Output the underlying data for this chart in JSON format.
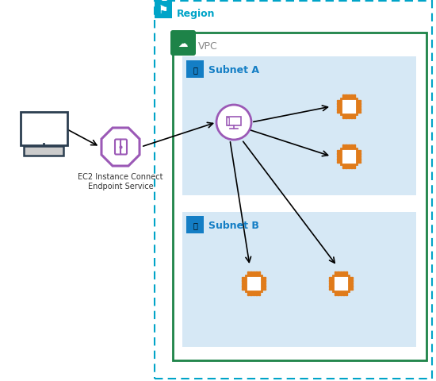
{
  "bg_color": "#ffffff",
  "region_border_color": "#00A4C8",
  "region_label": "Region",
  "region_label_color": "#00A4C8",
  "vpc_border_color": "#1D8348",
  "vpc_label": "VPC",
  "vpc_label_color": "#888888",
  "subnet_bg_color": "#D6E8F5",
  "subnet_label_color": "#147EC5",
  "subnet_icon_color": "#147EC5",
  "subnet_a_label": "Subnet A",
  "subnet_b_label": "Subnet B",
  "orange_chip_color": "#E07B1A",
  "purple_color": "#9B59B6",
  "client_color": "#2C3E50",
  "arrow_color": "#000000",
  "endpoint_service_label": "EC2 Instance Connect\nEndpoint Service",
  "fig_w": 5.5,
  "fig_h": 4.81,
  "dpi": 100
}
